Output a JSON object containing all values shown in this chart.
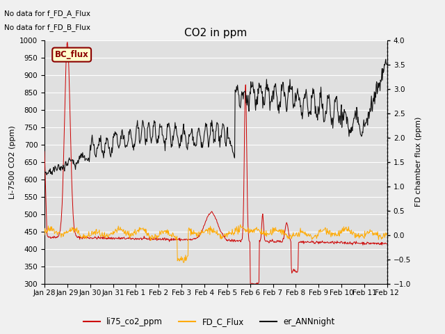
{
  "title": "CO2 in ppm",
  "ylabel_left": "Li-7500 CO2 (ppm)",
  "ylabel_right": "FD chamber flux (ppm)",
  "text_no_data_1": "No data for f_FD_A_Flux",
  "text_no_data_2": "No data for f_FD_B_Flux",
  "legend_box_label": "BC_flux",
  "ylim_left": [
    300,
    1000
  ],
  "ylim_right": [
    -1.0,
    4.0
  ],
  "legend_entries": [
    "li75_co2_ppm",
    "FD_C_Flux",
    "er_ANNnight"
  ],
  "legend_colors": [
    "#cc0000",
    "#ffaa00",
    "#111111"
  ],
  "line_colors": {
    "li75": "#cc0000",
    "FD_C": "#ffaa00",
    "er_ANN": "#111111"
  },
  "fig_bg": "#f0f0f0",
  "plot_bg": "#e0e0e0",
  "grid_color": "#ffffff",
  "tick_labels": [
    "Jan 28",
    "Jan 29",
    "Jan 30",
    "Jan 31",
    "Feb 1",
    "Feb 2",
    "Feb 3",
    "Feb 4",
    "Feb 5",
    "Feb 6",
    "Feb 7",
    "Feb 8",
    "Feb 9",
    "Feb 10",
    "Feb 11",
    "Feb 12"
  ],
  "n_days": 15
}
